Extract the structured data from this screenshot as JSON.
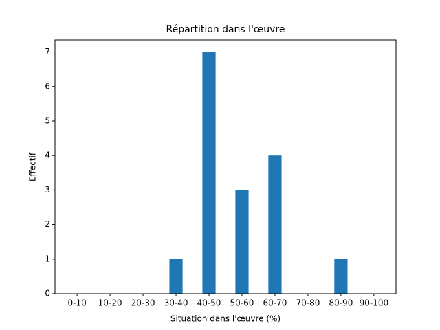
{
  "chart_data": {
    "type": "bar",
    "title": "Répartition dans l'œuvre",
    "x_label": "Situation dans l'œuvre (%)",
    "y_label": "Effectif",
    "categories": [
      "0-10",
      "10-20",
      "20-30",
      "30-40",
      "40-50",
      "50-60",
      "60-70",
      "70-80",
      "80-90",
      "90-100"
    ],
    "values": [
      0,
      0,
      0,
      1,
      7,
      3,
      4,
      0,
      1,
      0
    ],
    "color": "#1f77b4",
    "ylim": [
      0,
      7.35
    ],
    "yticks": [
      0,
      1,
      2,
      3,
      4,
      5,
      6,
      7
    ],
    "grid": false
  }
}
